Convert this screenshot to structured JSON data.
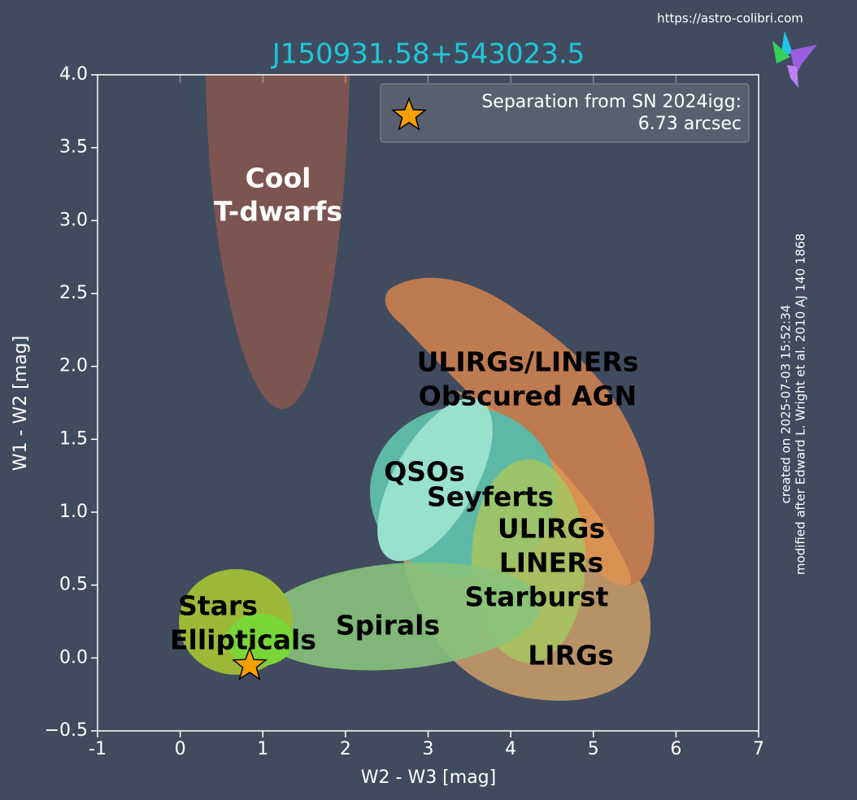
{
  "chart_data": {
    "type": "scatter",
    "title": "J150931.58+543023.5",
    "url": "https://astro-colibri.com",
    "xlabel": "W2 - W3 [mag]",
    "ylabel": "W1 - W2 [mag]",
    "notes": [
      "created on 2025-07-03 15:52:34",
      "modified after Edward L. Wright et al. 2010 AJ 140 1868"
    ],
    "xlim": [
      -1,
      7
    ],
    "ylim": [
      -0.5,
      4.0
    ],
    "xticks": [
      -1,
      0,
      1,
      2,
      3,
      4,
      5,
      6,
      7
    ],
    "yticks": [
      {
        "value": -0.5,
        "label": "−0.5"
      },
      {
        "value": 0,
        "label": "0.0"
      },
      0.5,
      {
        "value": 1,
        "label": "1.0"
      },
      1.5,
      {
        "value": 2,
        "label": "2.0"
      },
      2.5,
      {
        "value": 3,
        "label": "3.0"
      },
      3.5,
      {
        "value": 4,
        "label": "4.0"
      }
    ],
    "annotations": [
      "Cool",
      "T-dwarfs",
      "ULIRGs/LINERs",
      "Obscured AGN",
      "QSOs",
      "Seyferts",
      "ULIRGs",
      "LINERs",
      "Starburst",
      "LIRGs",
      "Stars",
      "Ellipticals",
      "Spirals"
    ],
    "series": [
      {
        "name": "Separation from SN 2024igg:",
        "label": "6.73 arcsec",
        "color": "#f5a000",
        "x": [
          0.84
        ],
        "y": [
          -0.05
        ]
      }
    ]
  }
}
